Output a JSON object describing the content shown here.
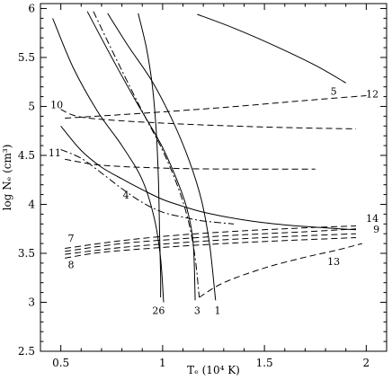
{
  "chart_data": {
    "type": "line",
    "title": "",
    "xlabel": "Tₑ (10⁴ K)",
    "ylabel": "log Nₑ (cm³)",
    "xlim": [
      0.4,
      2.1
    ],
    "ylim": [
      2.5,
      6.05
    ],
    "xticks": [
      0.5,
      1,
      1.5,
      2
    ],
    "xtick_labels": [
      "0.5",
      "1",
      "1.5",
      "2"
    ],
    "yticks": [
      2.5,
      3,
      3.5,
      4,
      4.5,
      5,
      5.5,
      6
    ],
    "ytick_labels": [
      "2.5",
      "3",
      "3.5",
      "4",
      "4.5",
      "5",
      "5.5",
      "6"
    ],
    "grid": false,
    "series": [
      {
        "name": "5",
        "style": "solid",
        "points": [
          [
            1.17,
            5.94
          ],
          [
            1.35,
            5.8
          ],
          [
            1.55,
            5.62
          ],
          [
            1.75,
            5.42
          ],
          [
            1.9,
            5.24
          ]
        ]
      },
      {
        "name": "12",
        "style": "dashed",
        "points": [
          [
            0.52,
            4.88
          ],
          [
            0.9,
            4.93
          ],
          [
            1.3,
            4.99
          ],
          [
            1.7,
            5.06
          ],
          [
            2.0,
            5.11
          ]
        ]
      },
      {
        "name": "10",
        "style": "dashed",
        "points": [
          [
            0.5,
            4.97
          ],
          [
            0.58,
            4.9
          ],
          [
            0.75,
            4.86
          ],
          [
            1.1,
            4.82
          ],
          [
            1.5,
            4.79
          ],
          [
            1.95,
            4.77
          ]
        ]
      },
      {
        "name": "11",
        "style": "dashed",
        "points": [
          [
            0.52,
            4.46
          ],
          [
            0.7,
            4.4
          ],
          [
            1.0,
            4.37
          ],
          [
            1.35,
            4.36
          ],
          [
            1.75,
            4.36
          ]
        ]
      },
      {
        "name": "4 (solid)",
        "style": "solid",
        "points": [
          [
            0.5,
            4.8
          ],
          [
            0.6,
            4.55
          ],
          [
            0.7,
            4.38
          ],
          [
            0.8,
            4.26
          ],
          [
            0.9,
            4.15
          ],
          [
            1.0,
            4.05
          ],
          [
            1.1,
            3.98
          ],
          [
            1.2,
            3.92
          ],
          [
            1.4,
            3.84
          ],
          [
            1.6,
            3.79
          ],
          [
            1.8,
            3.76
          ],
          [
            1.95,
            3.74
          ]
        ]
      },
      {
        "name": "4 (dash-dot)",
        "style": "dashdot",
        "points": [
          [
            0.5,
            4.56
          ],
          [
            0.6,
            4.47
          ],
          [
            0.7,
            4.32
          ],
          [
            0.8,
            4.16
          ],
          [
            0.9,
            4.02
          ],
          [
            1.0,
            3.92
          ],
          [
            1.1,
            3.87
          ],
          [
            1.2,
            3.83
          ],
          [
            1.35,
            3.8
          ]
        ]
      },
      {
        "name": "14",
        "style": "dashed",
        "points": [
          [
            0.52,
            3.55
          ],
          [
            0.8,
            3.63
          ],
          [
            1.1,
            3.69
          ],
          [
            1.4,
            3.73
          ],
          [
            1.7,
            3.76
          ],
          [
            1.95,
            3.78
          ]
        ]
      },
      {
        "name": "7",
        "style": "dashed",
        "points": [
          [
            0.52,
            3.52
          ],
          [
            0.8,
            3.6
          ],
          [
            1.1,
            3.65
          ],
          [
            1.4,
            3.69
          ],
          [
            1.7,
            3.72
          ],
          [
            1.95,
            3.75
          ]
        ]
      },
      {
        "name": "9",
        "style": "dashed",
        "points": [
          [
            0.52,
            3.49
          ],
          [
            0.8,
            3.56
          ],
          [
            1.1,
            3.61
          ],
          [
            1.4,
            3.65
          ],
          [
            1.7,
            3.68
          ],
          [
            1.95,
            3.7
          ]
        ]
      },
      {
        "name": "8",
        "style": "dashed",
        "points": [
          [
            0.52,
            3.45
          ],
          [
            0.7,
            3.51
          ],
          [
            1.0,
            3.56
          ],
          [
            1.3,
            3.6
          ],
          [
            1.6,
            3.63
          ],
          [
            1.95,
            3.66
          ]
        ]
      },
      {
        "name": "13",
        "style": "dashed",
        "points": [
          [
            1.18,
            3.05
          ],
          [
            1.3,
            3.2
          ],
          [
            1.5,
            3.35
          ],
          [
            1.7,
            3.46
          ],
          [
            1.85,
            3.53
          ],
          [
            1.98,
            3.6
          ]
        ]
      },
      {
        "name": "26 (a)",
        "style": "solid",
        "points": [
          [
            0.88,
            5.95
          ],
          [
            0.92,
            5.6
          ],
          [
            0.95,
            5.2
          ],
          [
            0.97,
            4.7
          ],
          [
            0.98,
            4.2
          ],
          [
            0.985,
            3.7
          ],
          [
            0.99,
            3.3
          ],
          [
            0.99,
            3.05
          ]
        ]
      },
      {
        "name": "26 (b)",
        "style": "solid",
        "points": [
          [
            0.46,
            5.9
          ],
          [
            0.56,
            5.4
          ],
          [
            0.68,
            4.95
          ],
          [
            0.8,
            4.6
          ],
          [
            0.9,
            4.25
          ],
          [
            0.96,
            3.85
          ],
          [
            0.99,
            3.45
          ],
          [
            1.005,
            3.0
          ]
        ]
      },
      {
        "name": "3",
        "style": "dashdot",
        "points": [
          [
            0.66,
            5.97
          ],
          [
            0.78,
            5.45
          ],
          [
            0.9,
            4.95
          ],
          [
            1.0,
            4.55
          ],
          [
            1.08,
            4.15
          ],
          [
            1.13,
            3.8
          ],
          [
            1.16,
            3.45
          ],
          [
            1.18,
            3.05
          ]
        ]
      },
      {
        "name": "1 (a)",
        "style": "solid",
        "points": [
          [
            0.63,
            5.97
          ],
          [
            0.75,
            5.5
          ],
          [
            0.87,
            5.05
          ],
          [
            0.99,
            4.62
          ],
          [
            1.07,
            4.25
          ],
          [
            1.12,
            3.95
          ],
          [
            1.15,
            3.6
          ],
          [
            1.16,
            3.02
          ]
        ]
      },
      {
        "name": "1 (b)",
        "style": "solid",
        "points": [
          [
            0.73,
            5.95
          ],
          [
            0.83,
            5.62
          ],
          [
            0.95,
            5.25
          ],
          [
            1.05,
            4.85
          ],
          [
            1.13,
            4.45
          ],
          [
            1.19,
            4.05
          ],
          [
            1.23,
            3.6
          ],
          [
            1.26,
            3.02
          ]
        ]
      }
    ],
    "annotations": [
      {
        "text": "5",
        "x": 1.84,
        "y": 5.12
      },
      {
        "text": "12",
        "x": 2.03,
        "y": 5.09
      },
      {
        "text": "10",
        "x": 0.48,
        "y": 4.98
      },
      {
        "text": "11",
        "x": 0.47,
        "y": 4.49
      },
      {
        "text": "4",
        "x": 0.82,
        "y": 4.06
      },
      {
        "text": "14",
        "x": 2.03,
        "y": 3.82
      },
      {
        "text": "9",
        "x": 2.05,
        "y": 3.71
      },
      {
        "text": "7",
        "x": 0.55,
        "y": 3.62
      },
      {
        "text": "8",
        "x": 0.55,
        "y": 3.35
      },
      {
        "text": "13",
        "x": 1.84,
        "y": 3.38
      },
      {
        "text": "26",
        "x": 0.98,
        "y": 2.88
      },
      {
        "text": "3",
        "x": 1.17,
        "y": 2.88
      },
      {
        "text": "1",
        "x": 1.27,
        "y": 2.88
      }
    ]
  }
}
